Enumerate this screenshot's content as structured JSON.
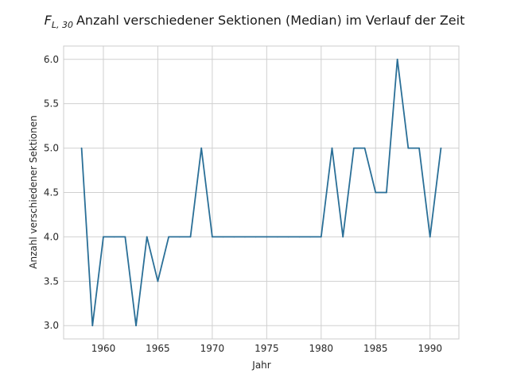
{
  "chart_data": {
    "type": "line",
    "title_prefix": "F",
    "title_subscript": "L, 30",
    "title_text": "Anzahl verschiedener Sektionen (Median) im Verlauf der Zeit",
    "xlabel": "Jahr",
    "ylabel": "Anzahl verschiedener Sektionen",
    "xlim": [
      1956.35,
      1992.65
    ],
    "ylim": [
      2.85,
      6.15
    ],
    "x_ticks": [
      1960,
      1965,
      1970,
      1975,
      1980,
      1985,
      1990
    ],
    "y_ticks": [
      3.0,
      3.5,
      4.0,
      4.5,
      5.0,
      5.5,
      6.0
    ],
    "x_tick_labels": [
      "1960",
      "1965",
      "1970",
      "1975",
      "1980",
      "1985",
      "1990"
    ],
    "y_tick_labels": [
      "3.0",
      "3.5",
      "4.0",
      "4.5",
      "5.0",
      "5.5",
      "6.0"
    ],
    "grid": true,
    "series": [
      {
        "color": "#2a6f97",
        "x": [
          1958,
          1959,
          1960,
          1961,
          1962,
          1963,
          1964,
          1965,
          1966,
          1967,
          1968,
          1969,
          1970,
          1971,
          1972,
          1973,
          1974,
          1975,
          1976,
          1977,
          1978,
          1979,
          1980,
          1981,
          1982,
          1983,
          1984,
          1985,
          1986,
          1987,
          1988,
          1989,
          1990,
          1991
        ],
        "y": [
          5,
          3,
          4,
          4,
          4,
          3,
          4,
          3.5,
          4,
          4,
          4,
          5,
          4,
          4,
          4,
          4,
          4,
          4,
          4,
          4,
          4,
          4,
          4,
          5,
          4,
          5,
          5,
          4.5,
          4.5,
          6,
          5,
          5,
          4,
          5
        ]
      }
    ]
  }
}
